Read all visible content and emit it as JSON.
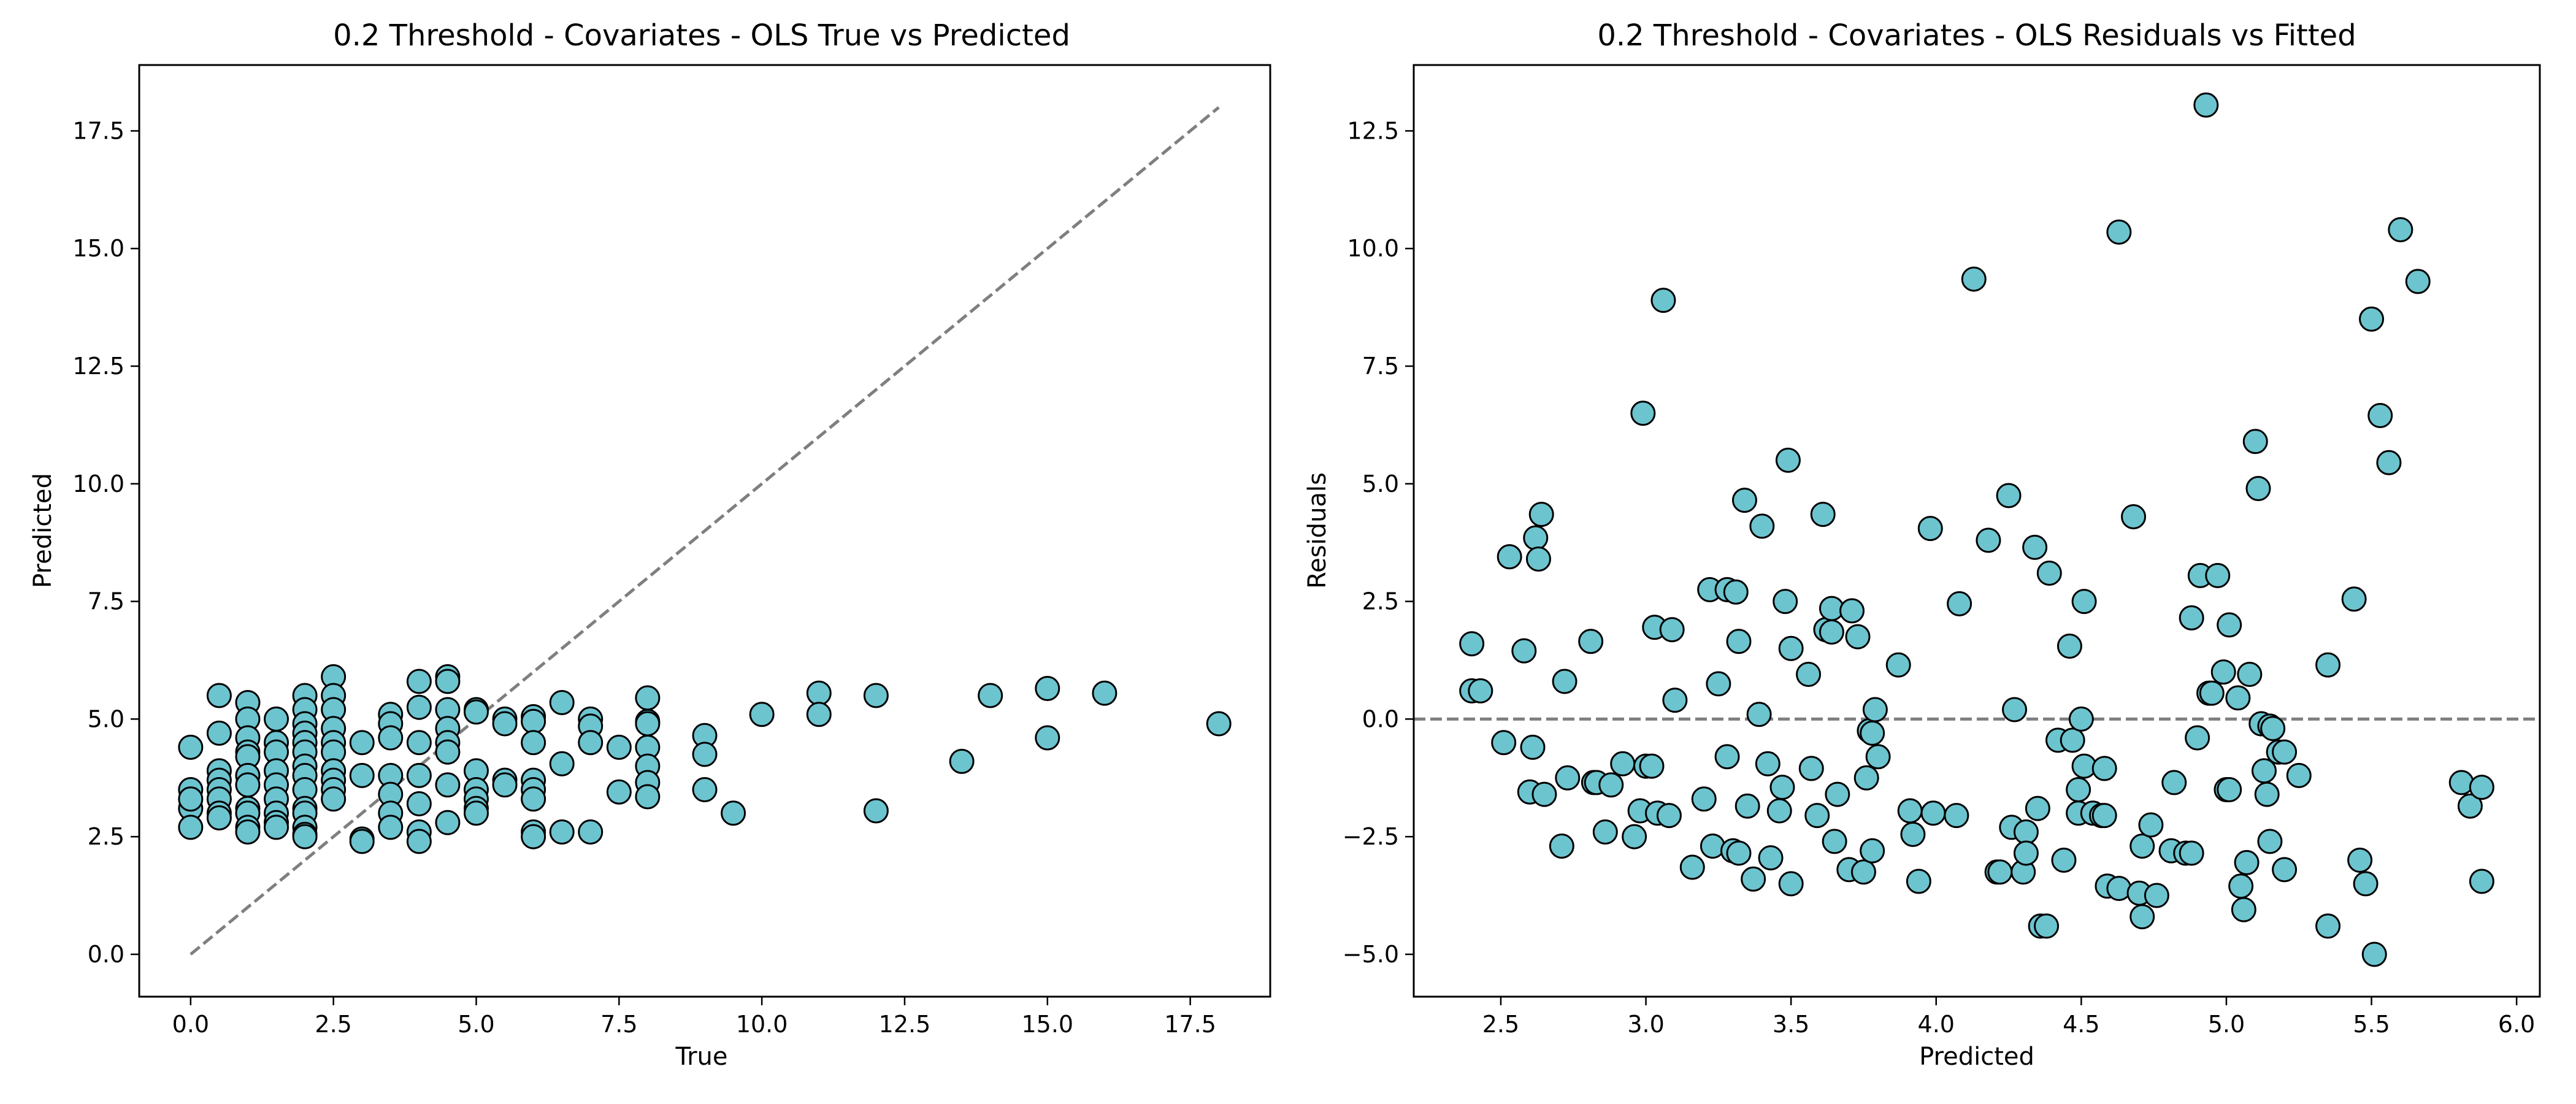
{
  "chart_data": [
    {
      "type": "scatter",
      "title": "0.2 Threshold - Covariates - OLS True vs Predicted",
      "xlabel": "True",
      "ylabel": "Predicted",
      "xlim": [
        -0.9,
        18.9
      ],
      "ylim": [
        -0.9,
        18.9
      ],
      "xticks": [
        "0.0",
        "2.5",
        "5.0",
        "7.5",
        "10.0",
        "12.5",
        "15.0",
        "17.5"
      ],
      "yticks": [
        "0.0",
        "2.5",
        "5.0",
        "7.5",
        "10.0",
        "12.5",
        "15.0",
        "17.5"
      ],
      "grid": false,
      "marker_color": "#6cc4cf",
      "edge_color": "#000000",
      "reference_line": {
        "style": "dashed",
        "color": "#7f7f7f",
        "from": [
          0,
          0
        ],
        "to": [
          18,
          18
        ]
      },
      "points": [
        [
          0,
          4.4
        ],
        [
          0,
          3.5
        ],
        [
          0,
          3.1
        ],
        [
          0,
          2.7
        ],
        [
          0,
          3.3
        ],
        [
          0.5,
          5.5
        ],
        [
          0.5,
          4.7
        ],
        [
          0.5,
          3.9
        ],
        [
          0.5,
          3.7
        ],
        [
          0.5,
          3.5
        ],
        [
          0.5,
          3.3
        ],
        [
          0.5,
          3.0
        ],
        [
          0.5,
          2.9
        ],
        [
          1,
          5.35
        ],
        [
          1,
          5.0
        ],
        [
          1,
          4.6
        ],
        [
          1,
          4.3
        ],
        [
          1,
          4.2
        ],
        [
          1,
          3.8
        ],
        [
          1,
          3.6
        ],
        [
          1,
          3.1
        ],
        [
          1,
          3.0
        ],
        [
          1,
          2.7
        ],
        [
          1,
          2.6
        ],
        [
          1.5,
          5.0
        ],
        [
          1.5,
          4.5
        ],
        [
          1.5,
          4.3
        ],
        [
          1.5,
          3.9
        ],
        [
          1.5,
          3.6
        ],
        [
          1.5,
          3.3
        ],
        [
          1.5,
          3.0
        ],
        [
          1.5,
          2.8
        ],
        [
          1.5,
          2.7
        ],
        [
          2,
          5.5
        ],
        [
          2,
          5.2
        ],
        [
          2,
          4.9
        ],
        [
          2,
          4.7
        ],
        [
          2,
          4.5
        ],
        [
          2,
          4.3
        ],
        [
          2,
          4.0
        ],
        [
          2,
          3.8
        ],
        [
          2,
          3.5
        ],
        [
          2,
          3.1
        ],
        [
          2,
          3.0
        ],
        [
          2,
          2.7
        ],
        [
          2,
          2.55
        ],
        [
          2,
          2.5
        ],
        [
          2.5,
          5.9
        ],
        [
          2.5,
          5.5
        ],
        [
          2.5,
          5.2
        ],
        [
          2.5,
          4.8
        ],
        [
          2.5,
          4.5
        ],
        [
          2.5,
          4.3
        ],
        [
          2.5,
          3.9
        ],
        [
          2.5,
          3.7
        ],
        [
          2.5,
          3.5
        ],
        [
          2.5,
          3.3
        ],
        [
          3,
          4.5
        ],
        [
          3,
          3.8
        ],
        [
          3,
          2.45
        ],
        [
          3,
          2.4
        ],
        [
          3.5,
          5.1
        ],
        [
          3.5,
          4.9
        ],
        [
          3.5,
          4.6
        ],
        [
          3.5,
          3.8
        ],
        [
          3.5,
          3.4
        ],
        [
          3.5,
          3.0
        ],
        [
          3.5,
          2.7
        ],
        [
          4,
          5.8
        ],
        [
          4,
          5.25
        ],
        [
          4,
          4.5
        ],
        [
          4,
          3.8
        ],
        [
          4,
          3.2
        ],
        [
          4,
          2.6
        ],
        [
          4,
          2.4
        ],
        [
          4.5,
          5.9
        ],
        [
          4.5,
          5.8
        ],
        [
          4.5,
          5.2
        ],
        [
          4.5,
          4.8
        ],
        [
          4.5,
          4.5
        ],
        [
          4.5,
          4.3
        ],
        [
          4.5,
          3.6
        ],
        [
          4.5,
          2.8
        ],
        [
          5,
          5.2
        ],
        [
          5,
          5.15
        ],
        [
          5,
          3.9
        ],
        [
          5,
          3.5
        ],
        [
          5,
          3.3
        ],
        [
          5,
          3.1
        ],
        [
          5,
          3.0
        ],
        [
          5.5,
          5.0
        ],
        [
          5.5,
          4.9
        ],
        [
          5.5,
          3.7
        ],
        [
          5.5,
          3.6
        ],
        [
          6,
          5.05
        ],
        [
          6,
          4.95
        ],
        [
          6,
          4.5
        ],
        [
          6,
          3.7
        ],
        [
          6,
          3.5
        ],
        [
          6,
          3.3
        ],
        [
          6,
          2.6
        ],
        [
          6,
          2.5
        ],
        [
          6.5,
          5.35
        ],
        [
          6.5,
          4.05
        ],
        [
          6.5,
          2.6
        ],
        [
          7,
          5.0
        ],
        [
          7,
          4.85
        ],
        [
          7,
          4.5
        ],
        [
          7,
          2.6
        ],
        [
          7.5,
          4.4
        ],
        [
          7.5,
          3.45
        ],
        [
          8,
          5.45
        ],
        [
          8,
          4.95
        ],
        [
          8,
          4.9
        ],
        [
          8,
          4.4
        ],
        [
          8,
          4.0
        ],
        [
          8,
          3.65
        ],
        [
          8,
          3.35
        ],
        [
          9,
          4.65
        ],
        [
          9,
          4.25
        ],
        [
          9,
          3.5
        ],
        [
          9.5,
          3.0
        ],
        [
          10,
          5.1
        ],
        [
          11,
          5.55
        ],
        [
          11,
          5.1
        ],
        [
          12,
          5.5
        ],
        [
          12,
          3.05
        ],
        [
          13.5,
          4.1
        ],
        [
          14,
          5.5
        ],
        [
          15,
          5.65
        ],
        [
          15,
          4.6
        ],
        [
          16,
          5.55
        ],
        [
          18,
          4.9
        ]
      ]
    },
    {
      "type": "scatter",
      "title": "0.2 Threshold - Covariates - OLS Residuals vs Fitted",
      "xlabel": "Predicted",
      "ylabel": "Residuals",
      "xlim": [
        2.2,
        6.08
      ],
      "ylim": [
        -5.9,
        13.9
      ],
      "xticks": [
        "2.5",
        "3.0",
        "3.5",
        "4.0",
        "4.5",
        "5.0",
        "5.5",
        "6.0"
      ],
      "yticks": [
        "−5.0",
        "−2.5",
        "0.0",
        "2.5",
        "5.0",
        "7.5",
        "10.0",
        "12.5"
      ],
      "grid": false,
      "marker_color": "#6cc4cf",
      "edge_color": "#000000",
      "reference_line": {
        "style": "dashed",
        "color": "#7f7f7f",
        "y": 0
      },
      "points": [
        [
          2.4,
          1.6
        ],
        [
          2.4,
          0.6
        ],
        [
          2.43,
          0.6
        ],
        [
          2.51,
          -0.5
        ],
        [
          2.53,
          3.45
        ],
        [
          2.58,
          1.45
        ],
        [
          2.6,
          -1.55
        ],
        [
          2.61,
          -0.6
        ],
        [
          2.62,
          3.85
        ],
        [
          2.63,
          3.4
        ],
        [
          2.64,
          4.35
        ],
        [
          2.65,
          -1.6
        ],
        [
          2.71,
          -2.7
        ],
        [
          2.72,
          0.8
        ],
        [
          2.73,
          -1.25
        ],
        [
          2.81,
          1.65
        ],
        [
          2.82,
          -1.35
        ],
        [
          2.83,
          -1.35
        ],
        [
          2.86,
          -2.4
        ],
        [
          2.88,
          -1.4
        ],
        [
          2.92,
          -0.95
        ],
        [
          2.96,
          -2.5
        ],
        [
          2.98,
          -1.95
        ],
        [
          2.99,
          6.5
        ],
        [
          3.0,
          -1.0
        ],
        [
          3.02,
          -1.0
        ],
        [
          3.03,
          1.95
        ],
        [
          3.04,
          -2.0
        ],
        [
          3.06,
          8.9
        ],
        [
          3.08,
          -2.05
        ],
        [
          3.09,
          1.9
        ],
        [
          3.1,
          0.4
        ],
        [
          3.16,
          -3.15
        ],
        [
          3.2,
          -1.7
        ],
        [
          3.22,
          2.75
        ],
        [
          3.23,
          -2.7
        ],
        [
          3.25,
          0.75
        ],
        [
          3.28,
          -0.8
        ],
        [
          3.28,
          2.75
        ],
        [
          3.3,
          -2.8
        ],
        [
          3.31,
          2.7
        ],
        [
          3.32,
          -2.85
        ],
        [
          3.32,
          1.65
        ],
        [
          3.34,
          4.65
        ],
        [
          3.35,
          -1.85
        ],
        [
          3.37,
          -3.4
        ],
        [
          3.39,
          0.1
        ],
        [
          3.4,
          4.1
        ],
        [
          3.42,
          -0.95
        ],
        [
          3.43,
          -2.95
        ],
        [
          3.46,
          -1.95
        ],
        [
          3.47,
          -1.45
        ],
        [
          3.48,
          2.5
        ],
        [
          3.49,
          5.5
        ],
        [
          3.5,
          -3.5
        ],
        [
          3.5,
          1.5
        ],
        [
          3.56,
          0.95
        ],
        [
          3.57,
          -1.05
        ],
        [
          3.59,
          -2.05
        ],
        [
          3.61,
          4.35
        ],
        [
          3.62,
          1.9
        ],
        [
          3.64,
          1.85
        ],
        [
          3.64,
          2.35
        ],
        [
          3.65,
          -2.6
        ],
        [
          3.66,
          -1.6
        ],
        [
          3.7,
          -3.2
        ],
        [
          3.71,
          2.3
        ],
        [
          3.73,
          1.75
        ],
        [
          3.75,
          -3.25
        ],
        [
          3.76,
          -1.25
        ],
        [
          3.77,
          -0.25
        ],
        [
          3.78,
          -2.8
        ],
        [
          3.78,
          -0.3
        ],
        [
          3.79,
          0.2
        ],
        [
          3.8,
          -0.8
        ],
        [
          3.87,
          1.15
        ],
        [
          3.91,
          -1.95
        ],
        [
          3.92,
          -2.45
        ],
        [
          3.94,
          -3.45
        ],
        [
          3.98,
          4.05
        ],
        [
          3.99,
          -2.0
        ],
        [
          4.07,
          -2.05
        ],
        [
          4.08,
          2.45
        ],
        [
          4.13,
          9.35
        ],
        [
          4.18,
          3.8
        ],
        [
          4.21,
          -3.25
        ],
        [
          4.22,
          -3.25
        ],
        [
          4.25,
          4.75
        ],
        [
          4.26,
          -2.3
        ],
        [
          4.27,
          0.2
        ],
        [
          4.3,
          -3.25
        ],
        [
          4.31,
          -2.4
        ],
        [
          4.31,
          -2.85
        ],
        [
          4.34,
          3.65
        ],
        [
          4.35,
          -1.9
        ],
        [
          4.36,
          -4.4
        ],
        [
          4.38,
          -4.4
        ],
        [
          4.39,
          3.1
        ],
        [
          4.42,
          -0.45
        ],
        [
          4.44,
          -3.0
        ],
        [
          4.46,
          1.55
        ],
        [
          4.47,
          -0.45
        ],
        [
          4.49,
          -1.5
        ],
        [
          4.49,
          -2.0
        ],
        [
          4.5,
          0.0
        ],
        [
          4.51,
          2.5
        ],
        [
          4.51,
          -1.0
        ],
        [
          4.54,
          -2.0
        ],
        [
          4.57,
          -2.05
        ],
        [
          4.58,
          -1.05
        ],
        [
          4.58,
          -2.05
        ],
        [
          4.59,
          -3.55
        ],
        [
          4.63,
          10.35
        ],
        [
          4.63,
          -3.6
        ],
        [
          4.68,
          4.3
        ],
        [
          4.7,
          -3.7
        ],
        [
          4.71,
          -2.7
        ],
        [
          4.71,
          -4.2
        ],
        [
          4.74,
          -2.25
        ],
        [
          4.76,
          -3.75
        ],
        [
          4.81,
          -2.8
        ],
        [
          4.82,
          -1.35
        ],
        [
          4.86,
          -2.85
        ],
        [
          4.88,
          2.15
        ],
        [
          4.88,
          -2.85
        ],
        [
          4.9,
          -0.4
        ],
        [
          4.91,
          3.05
        ],
        [
          4.93,
          13.05
        ],
        [
          4.94,
          0.55
        ],
        [
          4.95,
          0.55
        ],
        [
          4.97,
          3.05
        ],
        [
          4.99,
          1.0
        ],
        [
          5.0,
          -1.5
        ],
        [
          5.01,
          -1.5
        ],
        [
          5.01,
          2.0
        ],
        [
          5.04,
          0.45
        ],
        [
          5.05,
          -3.55
        ],
        [
          5.06,
          -4.05
        ],
        [
          5.07,
          -3.05
        ],
        [
          5.08,
          0.95
        ],
        [
          5.1,
          5.9
        ],
        [
          5.11,
          4.9
        ],
        [
          5.12,
          -0.1
        ],
        [
          5.13,
          -1.1
        ],
        [
          5.14,
          -1.6
        ],
        [
          5.15,
          -0.15
        ],
        [
          5.15,
          -2.6
        ],
        [
          5.16,
          -0.2
        ],
        [
          5.18,
          -0.7
        ],
        [
          5.2,
          -0.7
        ],
        [
          5.2,
          -3.2
        ],
        [
          5.25,
          -1.2
        ],
        [
          5.35,
          1.15
        ],
        [
          5.35,
          -4.4
        ],
        [
          5.44,
          2.55
        ],
        [
          5.46,
          -3.0
        ],
        [
          5.48,
          -3.5
        ],
        [
          5.5,
          8.5
        ],
        [
          5.51,
          -5.0
        ],
        [
          5.53,
          6.45
        ],
        [
          5.56,
          5.45
        ],
        [
          5.6,
          10.4
        ],
        [
          5.66,
          9.3
        ],
        [
          5.81,
          -1.35
        ],
        [
          5.84,
          -1.85
        ],
        [
          5.88,
          -1.45
        ],
        [
          5.88,
          -3.45
        ]
      ]
    }
  ]
}
